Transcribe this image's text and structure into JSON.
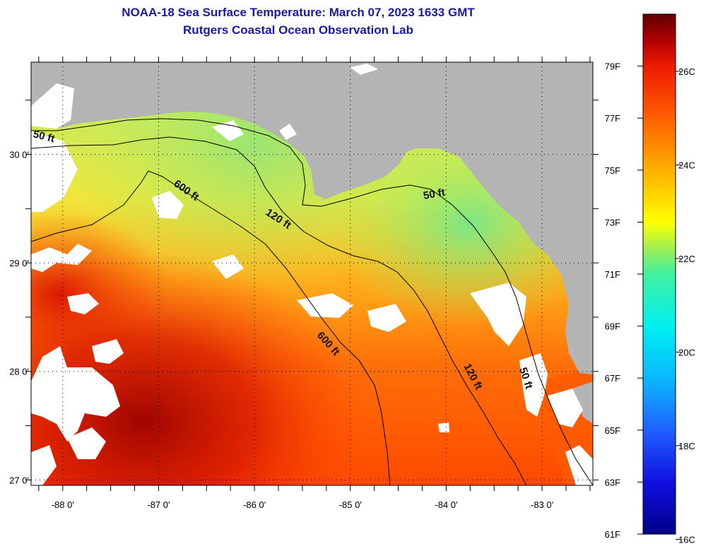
{
  "title": {
    "line1": "NOAA-18 Sea Surface Temperature:  March 07, 2023 1633 GMT",
    "line2": "Rutgers Coastal Ocean Observation Lab"
  },
  "map": {
    "lon_range": [
      -88.33,
      -82.47
    ],
    "lat_range": [
      26.95,
      30.85
    ],
    "lon_ticks": [
      {
        "value": -88,
        "label": "-88 0'"
      },
      {
        "value": -87,
        "label": "-87 0'"
      },
      {
        "value": -86,
        "label": "-86 0'"
      },
      {
        "value": -85,
        "label": "-85 0'"
      },
      {
        "value": -84,
        "label": "-84 0'"
      },
      {
        "value": -83,
        "label": "-83 0'"
      }
    ],
    "lat_ticks": [
      {
        "value": 30,
        "label": "30 0'"
      },
      {
        "value": 29,
        "label": "29 0'"
      },
      {
        "value": 28,
        "label": "28 0'"
      },
      {
        "value": 27,
        "label": "27 0'"
      }
    ],
    "contours": [
      {
        "label": "50 ft"
      },
      {
        "label": "50 ft"
      },
      {
        "label": "50 ft"
      },
      {
        "label": "120 ft"
      },
      {
        "label": "120 ft"
      },
      {
        "label": "600 ft"
      },
      {
        "label": "600 ft"
      }
    ],
    "colors": {
      "land": "#b4b4b4",
      "cloud": "#ffffff",
      "warm": "#ff7a00",
      "hot": "#c80000",
      "cool": "#88e07a"
    }
  },
  "colorbar": {
    "min_f": 61,
    "max_f": 81,
    "fahrenheit_labels": [
      "79F",
      "77F",
      "75F",
      "73F",
      "71F",
      "69F",
      "67F",
      "65F",
      "63F",
      "61F"
    ],
    "celsius_labels": [
      "26C",
      "24C",
      "22C",
      "20C",
      "18C",
      "16C"
    ],
    "stops": [
      {
        "f": 61,
        "color": "#00008b"
      },
      {
        "f": 63,
        "color": "#1010e0"
      },
      {
        "f": 65,
        "color": "#2060ff"
      },
      {
        "f": 67,
        "color": "#0ab8ff"
      },
      {
        "f": 69,
        "color": "#00f0f0"
      },
      {
        "f": 71,
        "color": "#40f0a0"
      },
      {
        "f": 72,
        "color": "#a0f050"
      },
      {
        "f": 73,
        "color": "#ffff00"
      },
      {
        "f": 75,
        "color": "#ffb000"
      },
      {
        "f": 77,
        "color": "#ff6000"
      },
      {
        "f": 79,
        "color": "#ee1a00"
      },
      {
        "f": 80,
        "color": "#b00000"
      },
      {
        "f": 81,
        "color": "#600000"
      }
    ]
  }
}
